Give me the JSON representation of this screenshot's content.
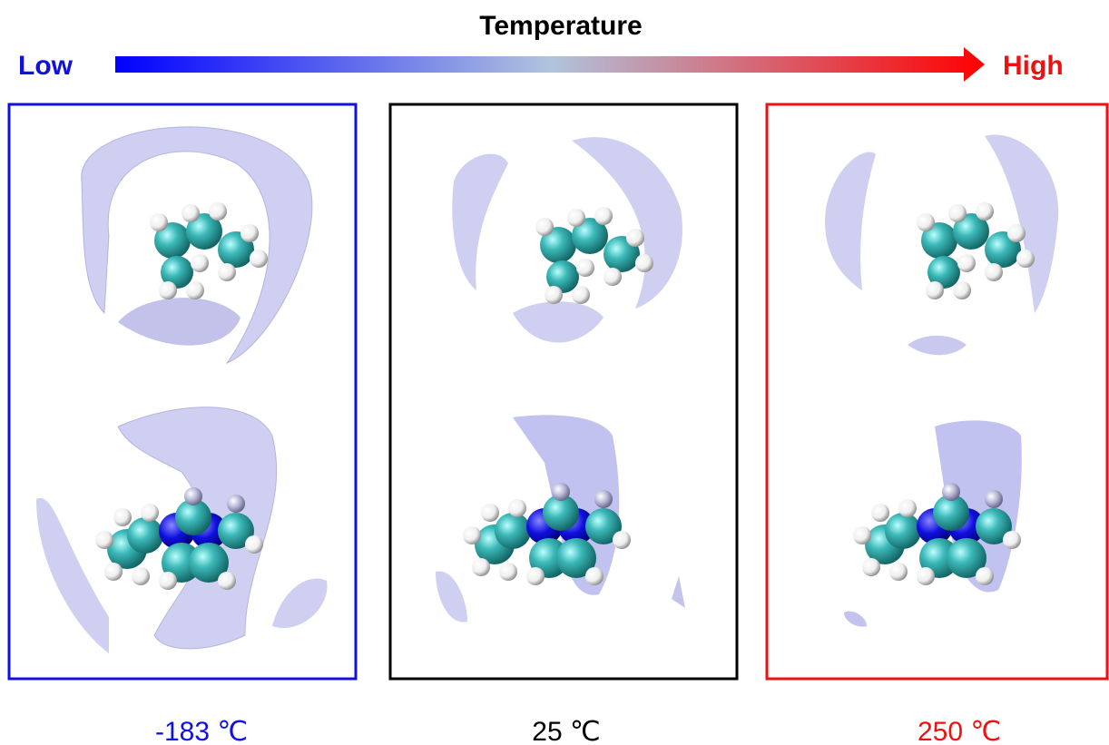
{
  "header": {
    "title": "Temperature",
    "low": "Low",
    "high": "High"
  },
  "panels": [
    {
      "label": "-183 ℃"
    },
    {
      "label": "25 ℃"
    },
    {
      "label": "250 ℃"
    }
  ]
}
